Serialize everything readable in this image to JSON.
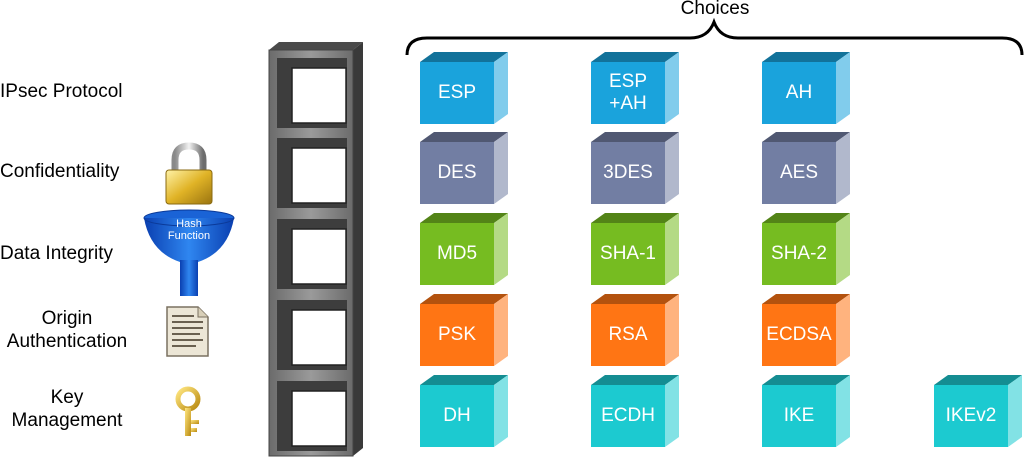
{
  "choices_label": "Choices",
  "rows": [
    {
      "label_lines": [
        "IPsec Protocol"
      ],
      "choices": [
        "ESP",
        "ESP\n+AH",
        "AH"
      ],
      "color": "#1aa3dc",
      "icon": "none-icon"
    },
    {
      "label_lines": [
        "Confidentiality"
      ],
      "choices": [
        "DES",
        "3DES",
        "AES"
      ],
      "color": "#727ea3",
      "icon": "padlock-icon"
    },
    {
      "label_lines": [
        "Data Integrity"
      ],
      "choices": [
        "MD5",
        "SHA-1",
        "SHA-2"
      ],
      "color": "#76bc21",
      "icon": "funnel-icon"
    },
    {
      "label_lines": [
        "Origin",
        "Authentication"
      ],
      "choices": [
        "PSK",
        "RSA",
        "ECDSA"
      ],
      "color": "#ff7514",
      "icon": "document-icon"
    },
    {
      "label_lines": [
        "Key",
        "Management"
      ],
      "choices": [
        "DH",
        "ECDH",
        "IKE",
        "IKEv2"
      ],
      "color": "#1ccad0",
      "icon": "key-icon"
    }
  ],
  "hash_function_label": [
    "Hash",
    "Function"
  ]
}
